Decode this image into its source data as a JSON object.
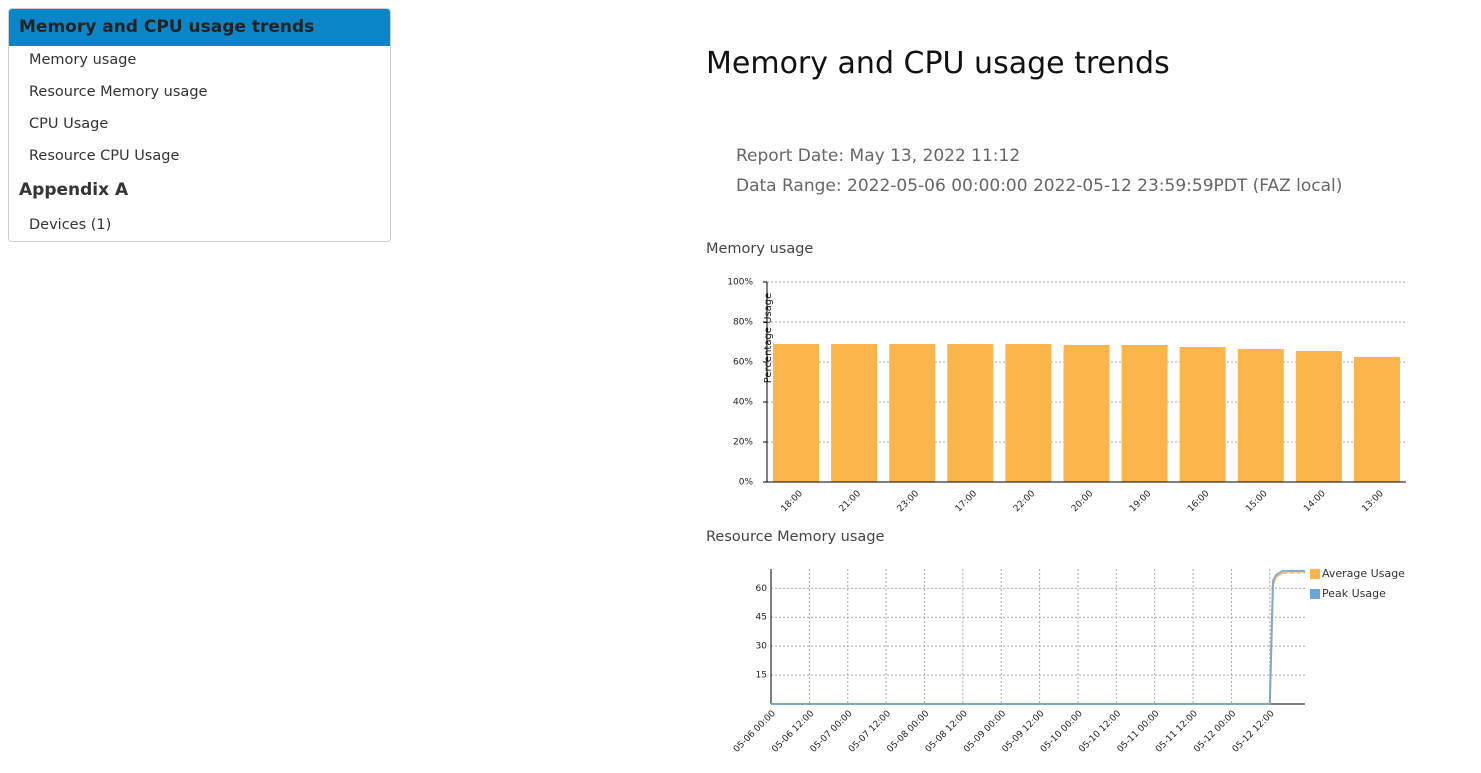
{
  "sidebar": {
    "title": "Memory and CPU usage trends",
    "items": [
      "Memory usage",
      "Resource Memory usage",
      "CPU Usage",
      "Resource CPU Usage"
    ],
    "section": "Appendix A",
    "section_items": [
      "Devices (1)"
    ]
  },
  "report": {
    "title": "Memory and CPU usage trends",
    "report_date": "Report Date: May 13, 2022 11:12",
    "data_range": "Data Range: 2022-05-06 00:00:00 2022-05-12 23:59:59PDT (FAZ local)"
  },
  "chart_data": [
    {
      "type": "bar",
      "title": "Memory usage",
      "ylabel": "Percentage Usage",
      "categories": [
        "18:00",
        "21:00",
        "23:00",
        "17:00",
        "22:00",
        "20:00",
        "19:00",
        "16:00",
        "15:00",
        "14:00",
        "13:00"
      ],
      "values": [
        69,
        69,
        69,
        69,
        69,
        68.5,
        68.5,
        67.5,
        66.5,
        65.5,
        62.5
      ],
      "color": "#fcb44c",
      "ylim": [
        0,
        100
      ],
      "yticks": [
        {
          "value": 0,
          "label": "0%"
        },
        {
          "value": 20,
          "label": "20%"
        },
        {
          "value": 40,
          "label": "40%"
        },
        {
          "value": 60,
          "label": "60%"
        },
        {
          "value": 80,
          "label": "80%"
        },
        {
          "value": 100,
          "label": "100%"
        }
      ],
      "grid": true
    },
    {
      "type": "line",
      "title": "Resource Memory usage",
      "x": [
        "05-06 00:00",
        "05-06 12:00",
        "05-07 00:00",
        "05-07 12:00",
        "05-08 00:00",
        "05-08 12:00",
        "05-09 00:00",
        "05-09 12:00",
        "05-10 00:00",
        "05-10 12:00",
        "05-11 00:00",
        "05-11 12:00",
        "05-12 00:00",
        "05-12 12:00",
        "05-12 13:00",
        "05-12 14:00",
        "05-12 15:00",
        "05-12 16:00",
        "05-12 17:00",
        "05-12 18:00",
        "05-12 19:00",
        "05-12 20:00",
        "05-12 21:00",
        "05-12 22:00",
        "05-12 23:00"
      ],
      "series": [
        {
          "name": "Average Usage",
          "color": "#fcb44c",
          "values": [
            0,
            0,
            0,
            0,
            0,
            0,
            0,
            0,
            0,
            0,
            0,
            0,
            0,
            0,
            62,
            66,
            67,
            68,
            68,
            69,
            68,
            69,
            68,
            69,
            68
          ]
        },
        {
          "name": "Peak Usage",
          "color": "#6aa5dc",
          "values": [
            0,
            0,
            0,
            0,
            0,
            0,
            0,
            0,
            0,
            0,
            0,
            0,
            0,
            0,
            64,
            67,
            68,
            69,
            69,
            69,
            69,
            69,
            69,
            69,
            69
          ]
        }
      ],
      "xlim": [
        "05-06 00:00",
        "05-12 23:00"
      ],
      "xticks": [
        "05-06 00:00",
        "05-06 12:00",
        "05-07 00:00",
        "05-07 12:00",
        "05-08 00:00",
        "05-08 12:00",
        "05-09 00:00",
        "05-09 12:00",
        "05-10 00:00",
        "05-10 12:00",
        "05-11 00:00",
        "05-11 12:00",
        "05-12 00:00",
        "05-12 12:00"
      ],
      "ylim": [
        0,
        70
      ],
      "yticks": [
        15,
        30,
        45,
        60
      ],
      "grid": true,
      "legend": "upper right"
    }
  ]
}
